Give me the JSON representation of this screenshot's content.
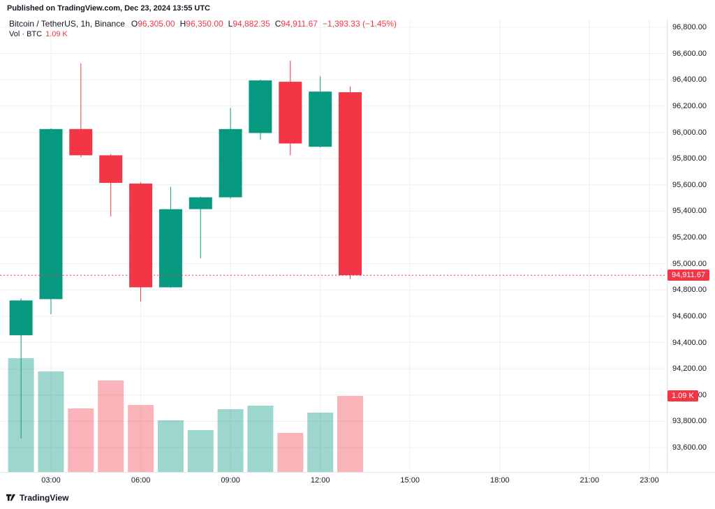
{
  "header": {
    "published": "Published on TradingView.com, Dec 23, 2024 13:55 UTC",
    "symbol": "Bitcoin / TetherUS, 1h, Binance",
    "ohlc": {
      "o_label": "O",
      "o_value": "96,305.00",
      "h_label": "H",
      "h_value": "96,350.00",
      "l_label": "L",
      "l_value": "94,882.35",
      "c_label": "C",
      "c_value": "94,911.67",
      "change": "−1,393.33 (−1.45%)"
    },
    "volume": {
      "label": "Vol · BTC",
      "value": "1.09 K"
    }
  },
  "footer": {
    "brand": "TradingView"
  },
  "colors": {
    "up": "#089981",
    "down": "#F23645",
    "vol_up": "rgba(8,153,129,0.40)",
    "vol_down": "rgba(242,54,69,0.38)",
    "grid": "#EDEFF4",
    "separator": "#E0E3EB",
    "axis_text": "#131722",
    "badge_text": "#FFFFFF"
  },
  "chart_data": {
    "type": "candlestick",
    "title": "Bitcoin / TetherUS, 1h, Binance",
    "symbol": "Bitcoin / TetherUS",
    "exchange": "Binance",
    "interval": "1h",
    "grid": true,
    "legend_position": "top-left",
    "volume_unit": "K BTC",
    "last_price": 94911.67,
    "last_price_label": "94,911.67",
    "last_volume_k": 1.09,
    "last_volume_label": "1.09 K",
    "price_axis": {
      "min": 93600,
      "max": 96800,
      "step": 200,
      "labels": [
        "96,800.00",
        "96,600.00",
        "96,400.00",
        "96,200.00",
        "96,000.00",
        "95,800.00",
        "95,600.00",
        "95,400.00",
        "95,200.00",
        "95,000.00",
        "94,800.00",
        "94,600.00",
        "94,400.00",
        "94,200.00",
        "94,000.00",
        "93,800.00",
        "93,600.00"
      ]
    },
    "time_axis": {
      "labels": [
        "03:00",
        "06:00",
        "09:00",
        "12:00",
        "15:00",
        "18:00",
        "21:00",
        "23:00"
      ],
      "hours": [
        3,
        6,
        9,
        12,
        15,
        18,
        21,
        23
      ]
    },
    "candles": [
      {
        "time": "02:00",
        "open": 94455,
        "high": 94735,
        "low": 93670,
        "close": 94720,
        "volume_k": 1.63,
        "direction": "up"
      },
      {
        "time": "03:00",
        "open": 94730,
        "high": 96030,
        "low": 94615,
        "close": 96025,
        "volume_k": 1.44,
        "direction": "up"
      },
      {
        "time": "04:00",
        "open": 96025,
        "high": 96525,
        "low": 95810,
        "close": 95825,
        "volume_k": 0.91,
        "direction": "down"
      },
      {
        "time": "05:00",
        "open": 95825,
        "high": 95835,
        "low": 95360,
        "close": 95615,
        "volume_k": 1.31,
        "direction": "down"
      },
      {
        "time": "06:00",
        "open": 95610,
        "high": 95620,
        "low": 94710,
        "close": 94820,
        "volume_k": 0.96,
        "direction": "down"
      },
      {
        "time": "07:00",
        "open": 94820,
        "high": 95585,
        "low": 94815,
        "close": 95415,
        "volume_k": 0.74,
        "direction": "up"
      },
      {
        "time": "08:00",
        "open": 95415,
        "high": 95510,
        "low": 95040,
        "close": 95505,
        "volume_k": 0.6,
        "direction": "up"
      },
      {
        "time": "09:00",
        "open": 95505,
        "high": 96185,
        "low": 95495,
        "close": 96025,
        "volume_k": 0.9,
        "direction": "up"
      },
      {
        "time": "10:00",
        "open": 95995,
        "high": 96400,
        "low": 95945,
        "close": 96395,
        "volume_k": 0.95,
        "direction": "up"
      },
      {
        "time": "11:00",
        "open": 96385,
        "high": 96545,
        "low": 95825,
        "close": 95915,
        "volume_k": 0.56,
        "direction": "down"
      },
      {
        "time": "12:00",
        "open": 95890,
        "high": 96425,
        "low": 95885,
        "close": 96310,
        "volume_k": 0.85,
        "direction": "up"
      },
      {
        "time": "13:00",
        "open": 96305,
        "high": 96350,
        "low": 94882.35,
        "close": 94911.67,
        "volume_k": 1.09,
        "direction": "down"
      }
    ]
  }
}
